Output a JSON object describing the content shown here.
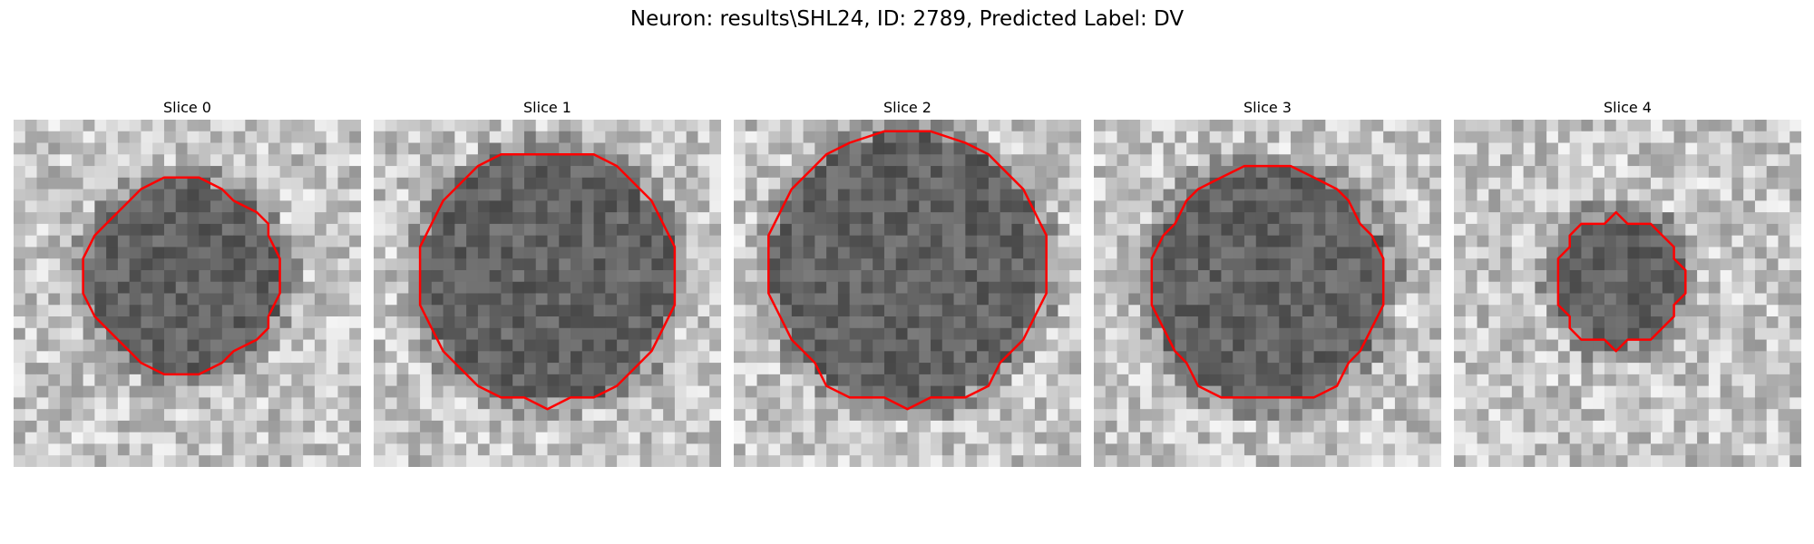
{
  "figure": {
    "title": "Neuron: results\\SHL24, ID: 2789, Predicted Label: DV"
  },
  "panels": [
    {
      "title": "Slice 0",
      "contour_color": "#ff0000"
    },
    {
      "title": "Slice 1",
      "contour_color": "#ff0000"
    },
    {
      "title": "Slice 2",
      "contour_color": "#ff0000"
    },
    {
      "title": "Slice 3",
      "contour_color": "#ff0000"
    },
    {
      "title": "Slice 4",
      "contour_color": "#ff0000"
    }
  ]
}
